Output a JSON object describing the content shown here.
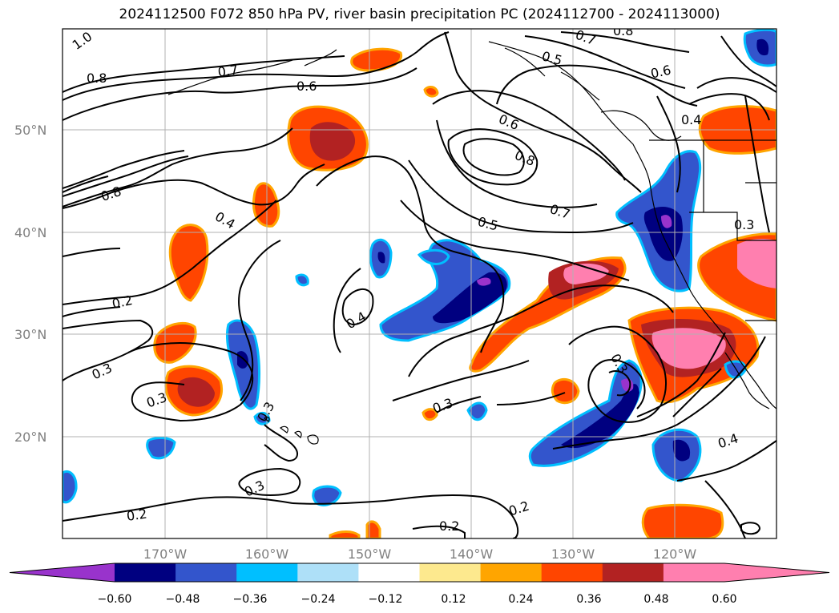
{
  "title": "2024112500 F072 850 hPa PV, river basin precipitation PC (2024112700 - 2024113000)",
  "lat_labels": [
    "50°N",
    "40°N",
    "30°N",
    "20°N"
  ],
  "lon_labels": [
    "170°W",
    "160°W",
    "150°W",
    "140°W",
    "130°W",
    "120°W"
  ],
  "contour_labels": [
    "1.0",
    "0.8",
    "0.7",
    "0.6",
    "0.8",
    "0.4",
    "0.2",
    "0.3",
    "0.3",
    "0.3",
    "0.3",
    "0.4",
    "0.3",
    "0.2",
    "0.2",
    "0.6",
    "0.8",
    "0.7",
    "0.5",
    "0.7",
    "0.8",
    "0.5",
    "0.6",
    "0.4",
    "0.3",
    "0.4",
    "0.2",
    "0.3"
  ],
  "colorbar": {
    "ticks": [
      "−0.60",
      "−0.48",
      "−0.36",
      "−0.24",
      "−0.12",
      "0.12",
      "0.24",
      "0.36",
      "0.48",
      "0.60"
    ],
    "colors": [
      "#9933cc",
      "#000080",
      "#3355cc",
      "#00bfff",
      "#aee0f8",
      "#ffffff",
      "#fde98e",
      "#ffa500",
      "#ff4500",
      "#b22222",
      "#ff7faf",
      "#ff7faf"
    ]
  },
  "colors": {
    "purple": "#9933cc",
    "navy": "#000080",
    "blue": "#3355cc",
    "cyan": "#00bfff",
    "lightblue": "#aee0f8",
    "yellow": "#fde98e",
    "orange": "#ffa500",
    "orangered": "#ff4500",
    "firebrick": "#b22222",
    "pink": "#ff7faf"
  }
}
